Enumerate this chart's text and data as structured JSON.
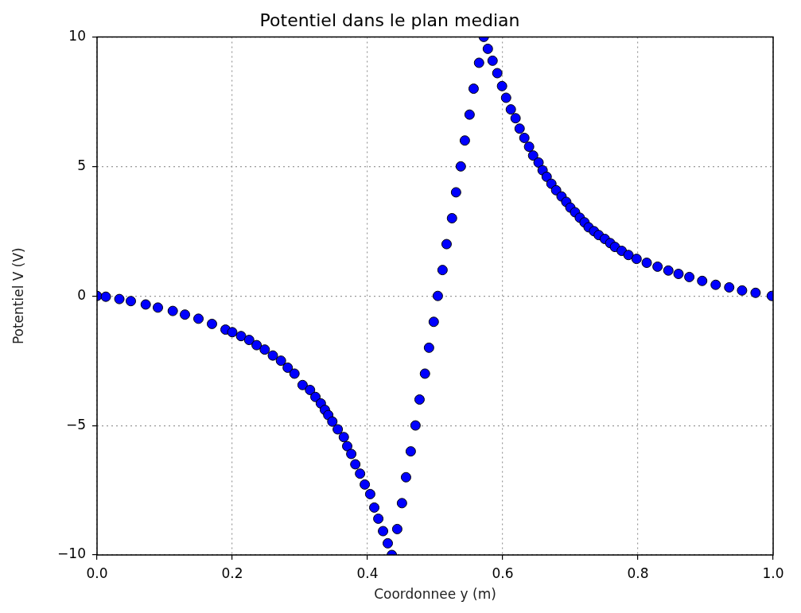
{
  "chart_data": {
    "type": "scatter",
    "title": "Potentiel dans le plan median",
    "xlabel": "Coordonnee y (m)",
    "ylabel": "Potentiel V (V)",
    "xlim": [
      0,
      1
    ],
    "ylim": [
      -10,
      10
    ],
    "xticks": [
      {
        "value": 0,
        "label": "0.0"
      },
      {
        "value": 0.2,
        "label": "0.2"
      },
      {
        "value": 0.4,
        "label": "0.4"
      },
      {
        "value": 0.6,
        "label": "0.6"
      },
      {
        "value": 0.8,
        "label": "0.8"
      },
      {
        "value": 1,
        "label": "1.0"
      }
    ],
    "yticks": [
      {
        "value": -10,
        "label": "−10"
      },
      {
        "value": -5,
        "label": "−5"
      },
      0,
      5,
      10
    ],
    "grid": true,
    "marker": "circle",
    "legend": false,
    "series": [
      {
        "color": "#0000ff",
        "x": [
          0,
          0.013,
          0.033,
          0.05,
          0.072,
          0.09,
          0.112,
          0.13,
          0.15,
          0.17,
          0.19,
          0.2,
          0.213,
          0.225,
          0.236,
          0.248,
          0.26,
          0.272,
          0.282,
          0.292,
          0.304,
          0.315,
          0.323,
          0.331,
          0.337,
          0.342,
          0.348,
          0.356,
          0.365,
          0.37,
          0.376,
          0.382,
          0.389,
          0.396,
          0.404,
          0.41,
          0.416,
          0.423,
          0.43,
          0.436,
          0.444,
          0.451,
          0.457,
          0.464,
          0.471,
          0.477,
          0.485,
          0.491,
          0.498,
          0.504,
          0.511,
          0.517,
          0.525,
          0.531,
          0.538,
          0.544,
          0.551,
          0.557,
          0.565,
          0.572,
          0.578,
          0.585,
          0.592,
          0.599,
          0.605,
          0.612,
          0.619,
          0.625,
          0.632,
          0.639,
          0.645,
          0.653,
          0.659,
          0.665,
          0.672,
          0.679,
          0.687,
          0.694,
          0.7,
          0.707,
          0.714,
          0.721,
          0.727,
          0.735,
          0.742,
          0.751,
          0.759,
          0.766,
          0.776,
          0.786,
          0.798,
          0.813,
          0.829,
          0.845,
          0.86,
          0.876,
          0.895,
          0.915,
          0.935,
          0.954,
          0.974,
          0.998
        ],
        "values": [
          0,
          -0.03,
          -0.12,
          -0.2,
          -0.33,
          -0.45,
          -0.58,
          -0.72,
          -0.88,
          -1.08,
          -1.3,
          -1.4,
          -1.55,
          -1.7,
          -1.9,
          -2.07,
          -2.3,
          -2.5,
          -2.77,
          -3.0,
          -3.44,
          -3.63,
          -3.9,
          -4.15,
          -4.4,
          -4.6,
          -4.85,
          -5.15,
          -5.45,
          -5.8,
          -6.1,
          -6.5,
          -6.86,
          -7.28,
          -7.65,
          -8.17,
          -8.6,
          -9.08,
          -9.55,
          -10,
          -9,
          -8,
          -7,
          -6,
          -5,
          -4,
          -3,
          -2,
          -1,
          0,
          1,
          2,
          3,
          4,
          5,
          6,
          7,
          8,
          9,
          10,
          9.54,
          9.08,
          8.6,
          8.1,
          7.65,
          7.2,
          6.86,
          6.46,
          6.1,
          5.76,
          5.42,
          5.15,
          4.85,
          4.6,
          4.33,
          4.08,
          3.84,
          3.63,
          3.41,
          3.23,
          3.02,
          2.84,
          2.65,
          2.5,
          2.35,
          2.2,
          2.04,
          1.89,
          1.74,
          1.58,
          1.43,
          1.28,
          1.13,
          0.98,
          0.85,
          0.73,
          0.58,
          0.43,
          0.33,
          0.21,
          0.12,
          0
        ]
      }
    ]
  }
}
